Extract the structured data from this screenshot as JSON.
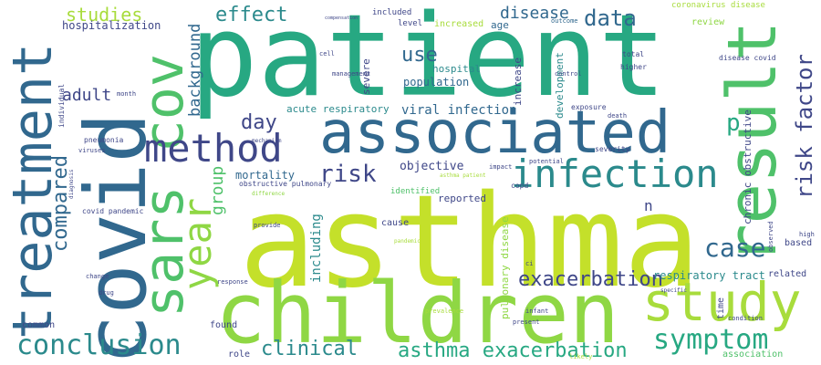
{
  "colors": {
    "background": "#ffffff",
    "palette": [
      "#c4e02a",
      "#8fd744",
      "#4fc16a",
      "#27a882",
      "#2b8a8c",
      "#31688e",
      "#3f4788",
      "#a8dc3c"
    ]
  },
  "words": {
    "patient": "patient",
    "asthma": "asthma",
    "covid": "covid",
    "children": "children",
    "associated": "associated",
    "result": "result",
    "treatment": "treatment",
    "sars_cov": "sars cov",
    "study": "study",
    "method": "method",
    "infection": "infection",
    "year": "year",
    "conclusion": "conclusion",
    "symptom": "symptom",
    "risk_factor": "risk factor",
    "case": "case",
    "risk": "risk",
    "exacerbation": "exacerbation",
    "asthma_exacerbation": "asthma exacerbation",
    "clinical": "clinical",
    "compared": "compared",
    "effect": "effect",
    "studies": "studies",
    "data": "data",
    "disease": "disease",
    "use": "use",
    "day": "day",
    "adult": "adult",
    "background": "background",
    "group": "group",
    "p": "p",
    "n": "n",
    "including": "including",
    "viral_infection": "viral infection",
    "population": "population",
    "hospital": "hospital",
    "hospitalization": "hospitalization",
    "chronic_obstructive": "chronic obstructive",
    "pulmonary_disease": "pulmonary disease",
    "respiratory_tract": "respiratory tract",
    "acute_respiratory": "acute respiratory",
    "mortality": "mortality",
    "objective": "objective",
    "reported": "reported",
    "severe": "severe",
    "increase": "increase",
    "development": "development",
    "coronavirus_disease": "coronavirus disease",
    "review": "review",
    "level": "level",
    "included": "included",
    "increased": "increased",
    "age": "age",
    "outcome": "outcome",
    "based": "based",
    "related": "related",
    "time": "time",
    "common": "common",
    "found": "found",
    "role": "role",
    "association": "association",
    "cause": "cause",
    "identified": "identified",
    "obstructive_pulmonary": "obstructive pulmonary",
    "disease_covid": "disease covid",
    "total": "total",
    "higher": "higher",
    "control": "control",
    "cell": "cell",
    "management": "management",
    "month": "month",
    "individual": "individual",
    "pneumonia": "pneumonia",
    "viruses": "viruses",
    "diagnosis": "diagnosis",
    "covid_pandemic": "covid pandemic",
    "provide": "provide",
    "change": "change",
    "drug": "drug",
    "response": "response",
    "exposure": "exposure",
    "death": "death",
    "severity": "severity",
    "impact": "impact",
    "potential": "potential",
    "copd": "copd",
    "ci": "ci",
    "prevalence": "prevalence",
    "pandemic": "pandemic",
    "infant": "infant",
    "present": "present",
    "likely": "likely",
    "condition": "condition",
    "observed": "observed",
    "high": "high",
    "specific": "specific",
    "mechanism": "mechanism",
    "difference": "difference",
    "asthma_patient": "asthma patient",
    "compensation": "compensation"
  }
}
